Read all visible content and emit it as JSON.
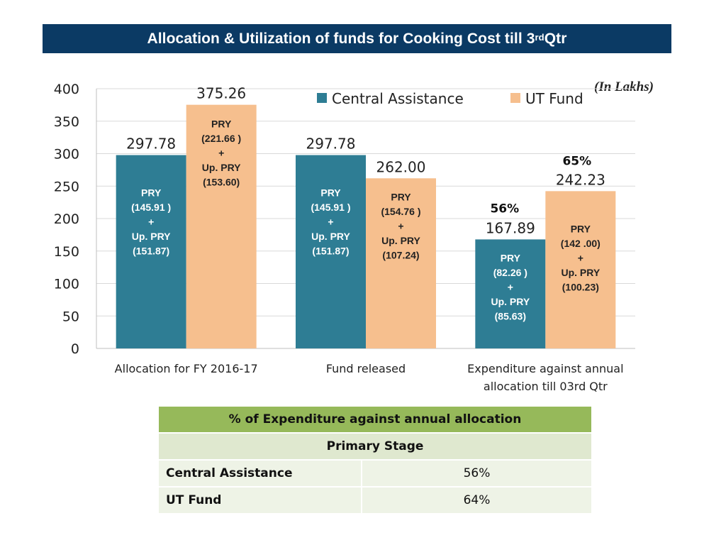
{
  "title": {
    "main": "Allocation & Utilization of funds for Cooking Cost  till 3",
    "sup": "rd",
    "tail": " Qtr"
  },
  "unit_note": "(In Lakhs)",
  "colors": {
    "header_bg": "#0b3a64",
    "central": "#2e7d94",
    "ut": "#f6bf8e",
    "table_head": "#96b95a",
    "table_sub": "#dfe8cf",
    "table_row": "#eef3e6"
  },
  "chart_data": {
    "type": "bar",
    "ylim": [
      0,
      400
    ],
    "yticks": [
      "0",
      "50",
      "100",
      "150",
      "200",
      "250",
      "300",
      "350",
      "400"
    ],
    "grid": true,
    "legend_position": "top-right",
    "categories": [
      [
        "Allocation for FY 2016-17"
      ],
      [
        "Fund released"
      ],
      [
        "Expenditure against annual",
        "allocation till 03rd  Qtr"
      ]
    ],
    "series": [
      {
        "name": "Central Assistance",
        "color": "#2e7d94",
        "values": [
          297.78,
          297.78,
          167.89
        ],
        "labels": [
          "297.78",
          "297.78",
          "167.89"
        ],
        "inner": [
          [
            "PRY",
            "(145.91 )",
            "+",
            "Up. PRY",
            "(151.87)"
          ],
          [
            "PRY",
            "(145.91 )",
            "+",
            "Up. PRY",
            "(151.87)"
          ],
          [
            "PRY",
            "(82.26 )",
            "+",
            "Up. PRY",
            "(85.63)"
          ]
        ],
        "pct": [
          "",
          "",
          "56%"
        ]
      },
      {
        "name": "UT Fund",
        "color": "#f6bf8e",
        "values": [
          375.26,
          262.0,
          242.23
        ],
        "labels": [
          "375.26",
          "262.00",
          "242.23"
        ],
        "inner": [
          [
            "PRY",
            "(221.66 )",
            "+",
            "Up. PRY",
            "(153.60)"
          ],
          [
            "PRY",
            "(154.76 )",
            "+",
            "Up. PRY",
            "(107.24)"
          ],
          [
            "PRY",
            "(142 .00)",
            "+",
            "Up. PRY",
            "(100.23)"
          ]
        ],
        "pct": [
          "",
          "",
          "65%"
        ]
      }
    ]
  },
  "table": {
    "header": "% of Expenditure against annual allocation",
    "subheader": "Primary Stage",
    "rows": [
      {
        "label": "Central Assistance",
        "value": "56%"
      },
      {
        "label": "UT Fund",
        "value": "64%"
      }
    ]
  }
}
